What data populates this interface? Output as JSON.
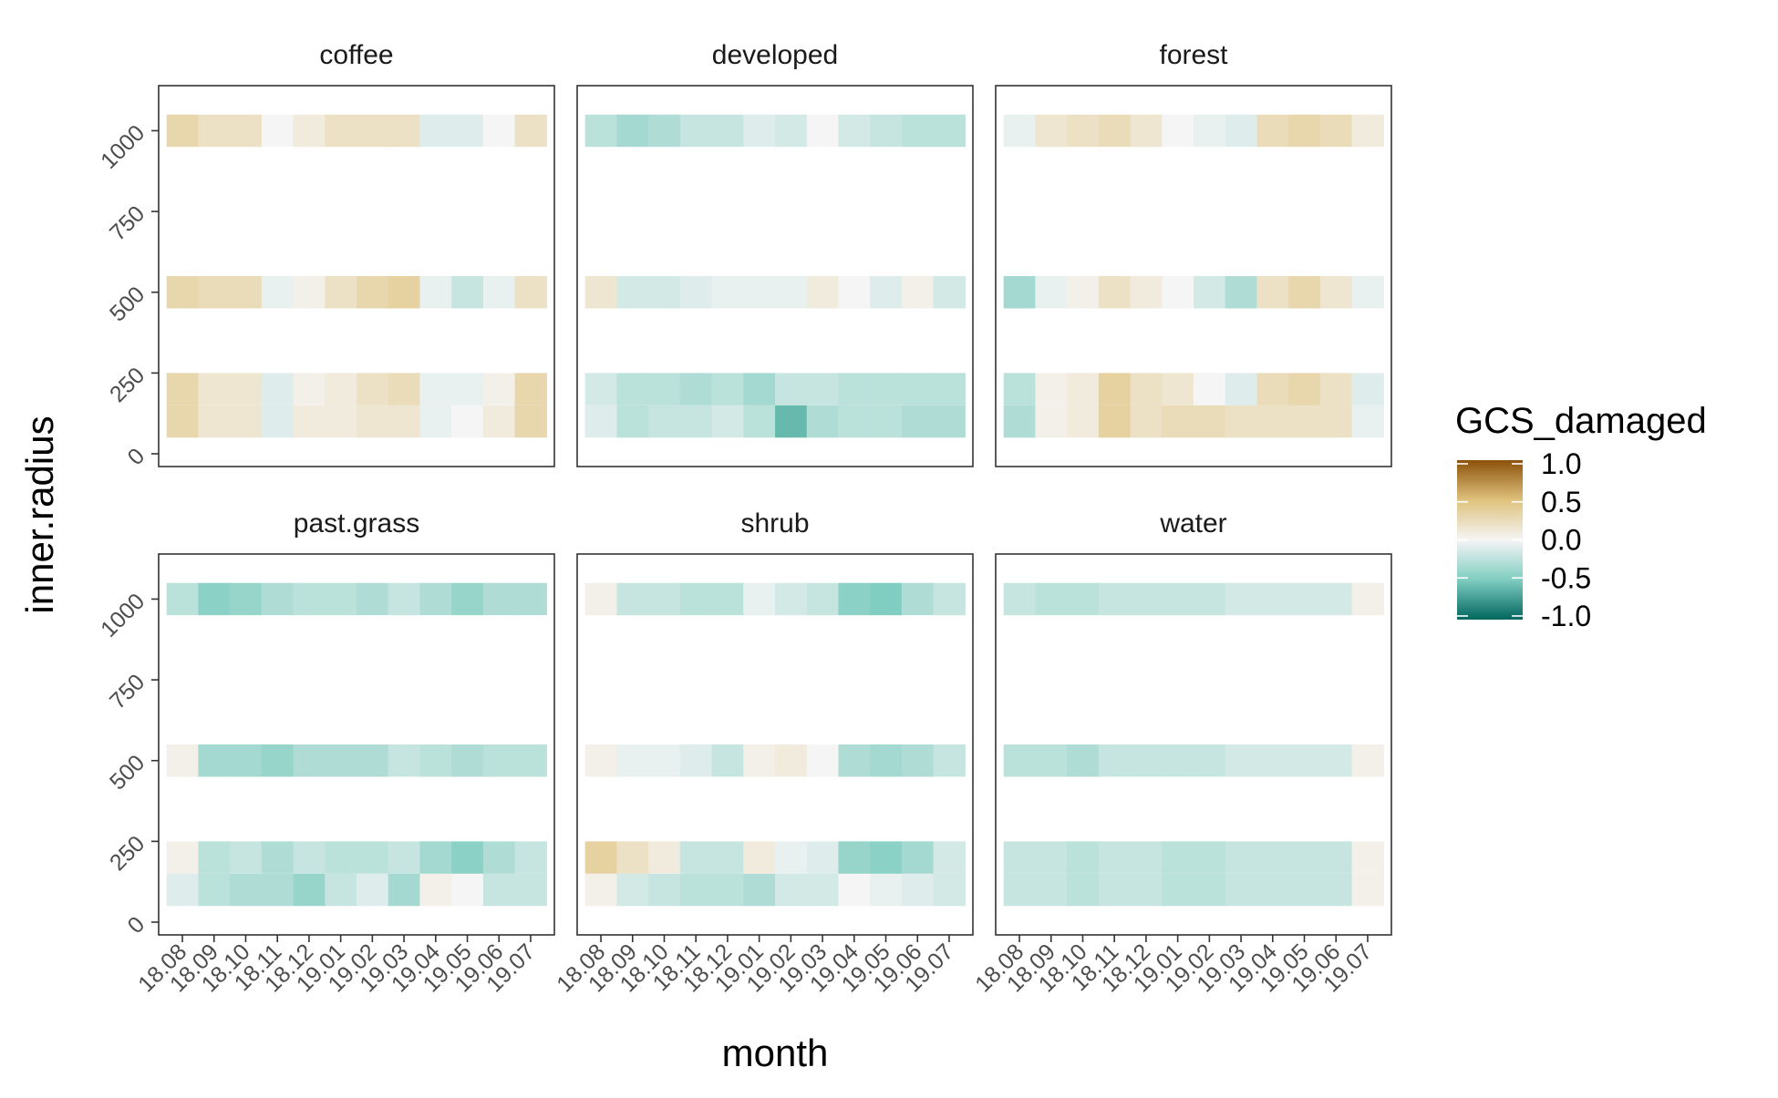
{
  "chart_data": {
    "type": "heatmap",
    "xlabel": "month",
    "ylabel": "inner.radius",
    "x_categories": [
      "18.08",
      "18.09",
      "18.10",
      "18.11",
      "18.12",
      "19.01",
      "19.02",
      "19.03",
      "19.04",
      "19.05",
      "19.06",
      "19.07"
    ],
    "y_ticks": [
      0,
      250,
      500,
      750,
      1000
    ],
    "ylim": [
      0,
      1100
    ],
    "y_rows": [
      100,
      200,
      500,
      1000
    ],
    "legend": {
      "title": "GCS_damaged",
      "ticks": [
        "1.0",
        "0.5",
        "0.0",
        "-0.5",
        "-1.0"
      ],
      "range": [
        -1,
        1
      ],
      "colors": {
        "high": "#8c510a",
        "mid_high": "#dfc27d",
        "mid": "#f5f5f5",
        "mid_low": "#80cdc1",
        "low": "#01665e"
      }
    },
    "panels": [
      {
        "name": "coffee",
        "rows": {
          "1000": [
            0.3,
            0.2,
            0.2,
            0.0,
            0.1,
            0.2,
            0.2,
            0.2,
            -0.1,
            -0.1,
            0.0,
            0.2
          ],
          "500": [
            0.3,
            0.25,
            0.25,
            -0.05,
            0.05,
            0.2,
            0.3,
            0.35,
            -0.05,
            -0.2,
            -0.05,
            0.2
          ],
          "200": [
            0.3,
            0.15,
            0.15,
            -0.1,
            0.05,
            0.1,
            0.2,
            0.25,
            -0.05,
            -0.05,
            0.05,
            0.3
          ],
          "100": [
            0.3,
            0.15,
            0.15,
            -0.1,
            0.1,
            0.1,
            0.15,
            0.15,
            -0.05,
            0.0,
            0.1,
            0.3
          ]
        }
      },
      {
        "name": "developed",
        "rows": {
          "1000": [
            -0.25,
            -0.35,
            -0.3,
            -0.2,
            -0.2,
            -0.1,
            -0.15,
            0.0,
            -0.15,
            -0.2,
            -0.25,
            -0.25
          ],
          "500": [
            0.15,
            -0.15,
            -0.15,
            -0.1,
            -0.05,
            -0.05,
            -0.05,
            0.1,
            0.0,
            -0.1,
            0.05,
            -0.15
          ],
          "200": [
            -0.15,
            -0.25,
            -0.25,
            -0.3,
            -0.25,
            -0.35,
            -0.2,
            -0.2,
            -0.25,
            -0.25,
            -0.25,
            -0.25
          ],
          "100": [
            -0.1,
            -0.25,
            -0.2,
            -0.2,
            -0.15,
            -0.25,
            -0.6,
            -0.3,
            -0.25,
            -0.25,
            -0.3,
            -0.3
          ]
        }
      },
      {
        "name": "forest",
        "rows": {
          "1000": [
            -0.05,
            0.15,
            0.2,
            0.25,
            0.15,
            0.0,
            -0.05,
            -0.1,
            0.25,
            0.3,
            0.25,
            0.1
          ],
          "500": [
            -0.35,
            -0.05,
            0.05,
            0.2,
            0.1,
            0.0,
            -0.15,
            -0.3,
            0.2,
            0.3,
            0.15,
            -0.05
          ],
          "200": [
            -0.25,
            0.05,
            0.1,
            0.35,
            0.2,
            0.15,
            0.0,
            -0.1,
            0.25,
            0.3,
            0.2,
            -0.1
          ],
          "100": [
            -0.3,
            0.05,
            0.1,
            0.35,
            0.2,
            0.25,
            0.25,
            0.2,
            0.2,
            0.2,
            0.2,
            -0.05
          ]
        }
      },
      {
        "name": "past.grass",
        "rows": {
          "1000": [
            -0.25,
            -0.45,
            -0.4,
            -0.3,
            -0.25,
            -0.25,
            -0.3,
            -0.2,
            -0.3,
            -0.4,
            -0.3,
            -0.3
          ],
          "500": [
            0.05,
            -0.35,
            -0.35,
            -0.4,
            -0.3,
            -0.3,
            -0.3,
            -0.2,
            -0.25,
            -0.3,
            -0.25,
            -0.25
          ],
          "200": [
            0.05,
            -0.25,
            -0.2,
            -0.3,
            -0.2,
            -0.25,
            -0.25,
            -0.2,
            -0.35,
            -0.45,
            -0.3,
            -0.2
          ],
          "100": [
            -0.1,
            -0.25,
            -0.3,
            -0.3,
            -0.4,
            -0.2,
            -0.1,
            -0.35,
            0.05,
            0.0,
            -0.2,
            -0.2
          ]
        }
      },
      {
        "name": "shrub",
        "rows": {
          "1000": [
            0.05,
            -0.2,
            -0.2,
            -0.25,
            -0.25,
            -0.05,
            -0.15,
            -0.2,
            -0.45,
            -0.5,
            -0.3,
            -0.2
          ],
          "500": [
            0.05,
            -0.05,
            -0.05,
            -0.1,
            -0.2,
            0.05,
            0.1,
            0.0,
            -0.3,
            -0.35,
            -0.3,
            -0.2
          ],
          "200": [
            0.35,
            0.2,
            0.1,
            -0.2,
            -0.2,
            0.1,
            -0.05,
            -0.1,
            -0.4,
            -0.45,
            -0.35,
            -0.15
          ],
          "100": [
            0.05,
            -0.15,
            -0.2,
            -0.25,
            -0.25,
            -0.3,
            -0.15,
            -0.15,
            0.0,
            -0.05,
            -0.1,
            -0.15
          ]
        }
      },
      {
        "name": "water",
        "rows": {
          "1000": [
            -0.2,
            -0.25,
            -0.25,
            -0.2,
            -0.2,
            -0.2,
            -0.2,
            -0.15,
            -0.15,
            -0.15,
            -0.15,
            0.05
          ],
          "500": [
            -0.25,
            -0.25,
            -0.3,
            -0.2,
            -0.2,
            -0.2,
            -0.2,
            -0.15,
            -0.15,
            -0.15,
            -0.15,
            0.05
          ],
          "200": [
            -0.2,
            -0.2,
            -0.25,
            -0.2,
            -0.2,
            -0.25,
            -0.25,
            -0.2,
            -0.2,
            -0.2,
            -0.2,
            0.05
          ],
          "100": [
            -0.2,
            -0.2,
            -0.25,
            -0.2,
            -0.2,
            -0.25,
            -0.25,
            -0.2,
            -0.2,
            -0.2,
            -0.2,
            0.05
          ]
        }
      }
    ]
  }
}
